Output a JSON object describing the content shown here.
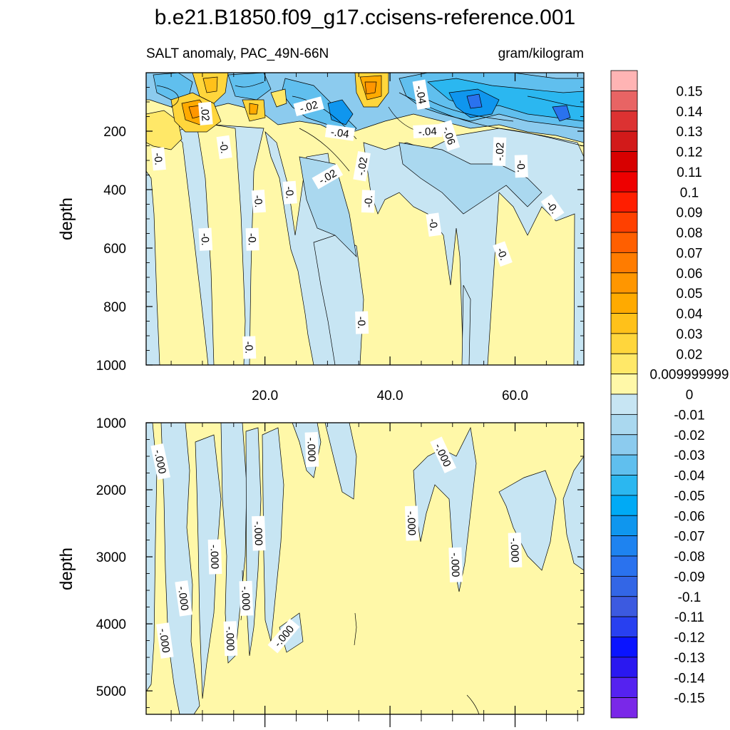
{
  "chart_data": {
    "type": "heatmap",
    "title": "b.e21.B1850.f09_g17.ccisens-reference.001",
    "subtitle_left": "SALT anomaly, PAC_49N-66N",
    "subtitle_right": "gram/kilogram",
    "xlabel": "",
    "xlim": [
      1,
      71
    ],
    "x_ticks": [
      20,
      40,
      60
    ],
    "x_tick_labels": [
      "20.0",
      "40.0",
      "60.0"
    ],
    "panels": [
      {
        "name": "upper",
        "ylabel": "depth",
        "ylim": [
          0,
          1000
        ],
        "y_reversed": true,
        "y_ticks": [
          200,
          400,
          600,
          800,
          1000
        ],
        "y_tick_labels": [
          "200",
          "400",
          "600",
          "800",
          "1000"
        ],
        "contour_labels": [
          {
            "text": ".02",
            "x": 10.5,
            "y": 140,
            "angle": 85
          },
          {
            "text": "-.02",
            "x": 27,
            "y": 115,
            "angle": -15
          },
          {
            "text": "-.04",
            "x": 32,
            "y": 205,
            "angle": 8
          },
          {
            "text": "-.04",
            "x": 45,
            "y": 75,
            "angle": 80
          },
          {
            "text": "-.04",
            "x": 46,
            "y": 200,
            "angle": -3
          },
          {
            "text": "-.06",
            "x": 49.5,
            "y": 215,
            "angle": 72
          },
          {
            "text": "-.02",
            "x": 30,
            "y": 355,
            "angle": -30
          },
          {
            "text": "-.02",
            "x": 35.5,
            "y": 320,
            "angle": -80
          },
          {
            "text": "-.02",
            "x": 57.5,
            "y": 270,
            "angle": -88
          },
          {
            "text": "-0.",
            "x": 3,
            "y": 295,
            "angle": 85
          },
          {
            "text": "-0.",
            "x": 13.5,
            "y": 255,
            "angle": 82
          },
          {
            "text": "-0.",
            "x": 19,
            "y": 440,
            "angle": 86
          },
          {
            "text": "-0.",
            "x": 24,
            "y": 410,
            "angle": 86
          },
          {
            "text": "-0.",
            "x": 36.5,
            "y": 440,
            "angle": -88
          },
          {
            "text": "-0.",
            "x": 10.5,
            "y": 570,
            "angle": 87
          },
          {
            "text": "-0.",
            "x": 18,
            "y": 570,
            "angle": 88
          },
          {
            "text": "-0.",
            "x": 47,
            "y": 520,
            "angle": 82
          },
          {
            "text": "-0.",
            "x": 61,
            "y": 320,
            "angle": 88
          },
          {
            "text": "-0.",
            "x": 66,
            "y": 460,
            "angle": 55
          },
          {
            "text": "-0.",
            "x": 58,
            "y": 620,
            "angle": 70
          },
          {
            "text": "-0.",
            "x": 35.5,
            "y": 855,
            "angle": 88
          },
          {
            "text": "-0.",
            "x": 17.5,
            "y": 940,
            "angle": 88
          }
        ]
      },
      {
        "name": "lower",
        "ylabel": "depth",
        "ylim": [
          1000,
          5350
        ],
        "y_reversed": true,
        "y_ticks": [
          1000,
          2000,
          3000,
          4000,
          5000
        ],
        "y_tick_labels": [
          "1000",
          "2000",
          "3000",
          "4000",
          "5000"
        ],
        "contour_labels": [
          {
            "text": "-.000",
            "x": 3.3,
            "y": 1580,
            "angle": 78
          },
          {
            "text": "-.000",
            "x": 27.5,
            "y": 1400,
            "angle": 88
          },
          {
            "text": "-.000",
            "x": 48.5,
            "y": 1480,
            "angle": 65
          },
          {
            "text": "-.000",
            "x": 19,
            "y": 2650,
            "angle": 88
          },
          {
            "text": "-.000",
            "x": 12,
            "y": 3000,
            "angle": 88
          },
          {
            "text": "-.000",
            "x": 43.5,
            "y": 2500,
            "angle": 88
          },
          {
            "text": "-.000",
            "x": 60,
            "y": 2900,
            "angle": 88
          },
          {
            "text": "-.000",
            "x": 50.5,
            "y": 3120,
            "angle": 88
          },
          {
            "text": "-.000",
            "x": 7,
            "y": 3620,
            "angle": 82
          },
          {
            "text": "-.000",
            "x": 17,
            "y": 3620,
            "angle": 88
          },
          {
            "text": "-.000",
            "x": 14.5,
            "y": 4220,
            "angle": 88
          },
          {
            "text": "-.000",
            "x": 4,
            "y": 4250,
            "angle": 82
          },
          {
            "text": "-.000",
            "x": 23,
            "y": 4180,
            "angle": -50
          }
        ]
      }
    ],
    "colorbar": {
      "labels": [
        "0.15",
        "0.14",
        "0.13",
        "0.12",
        "0.11",
        "0.1",
        "0.09",
        "0.08",
        "0.07",
        "0.06",
        "0.05",
        "0.04",
        "0.03",
        "0.02",
        "0.009999999",
        "0",
        "-0.01",
        "-0.02",
        "-0.03",
        "-0.04",
        "-0.05",
        "-0.06",
        "-0.07",
        "-0.08",
        "-0.09",
        "-0.1",
        "-0.11",
        "-0.12",
        "-0.13",
        "-0.14",
        "-0.15"
      ],
      "colors": [
        "#ffb4b4",
        "#e86464",
        "#dc3232",
        "#d21a1a",
        "#d70000",
        "#ee0000",
        "#ff1e00",
        "#ff4000",
        "#ff5f00",
        "#ff7c00",
        "#ff9600",
        "#ffaa00",
        "#ffc11a",
        "#ffd63c",
        "#ffe868",
        "#fff8a8",
        "#c7e5f3",
        "#aad8ef",
        "#8ccbee",
        "#60bfee",
        "#2bb7f0",
        "#00aaf5",
        "#0f96ee",
        "#1e83f0",
        "#2a72ee",
        "#3366e6",
        "#3c5ae0",
        "#2840f0",
        "#0a14ff",
        "#2a18f0",
        "#5522f0",
        "#7a28e8"
      ]
    },
    "colors": {
      "zero_positive": "#fff8a8",
      "slight_negative": "#c7e5f3",
      "contour_line": "#000000"
    }
  }
}
